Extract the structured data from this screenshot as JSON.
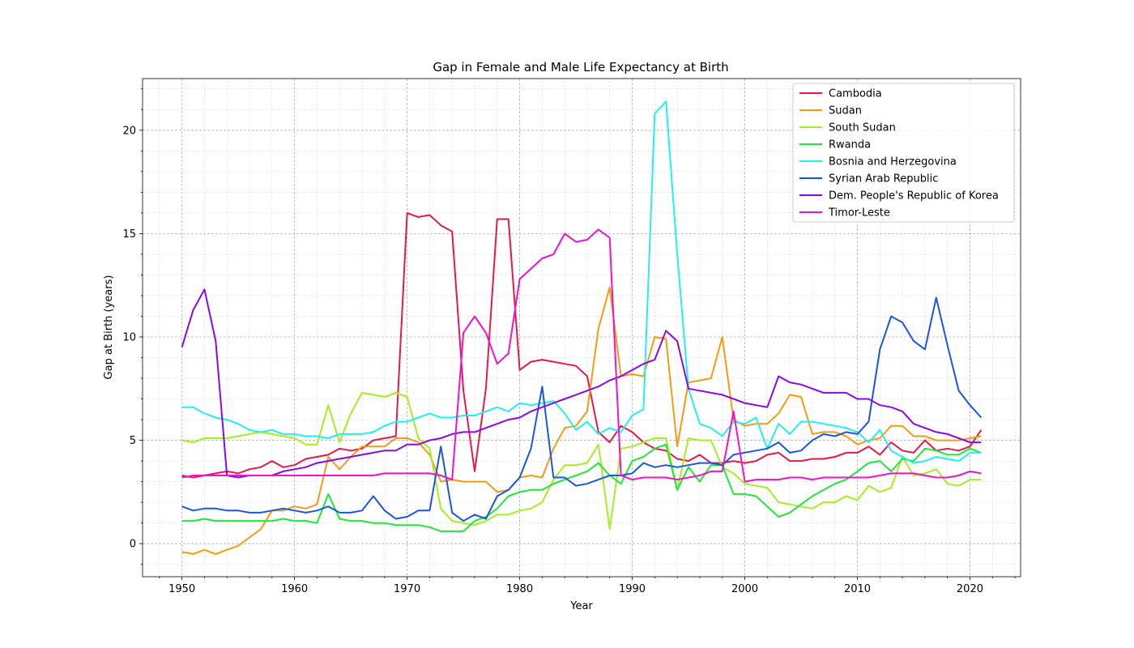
{
  "chart_data": {
    "type": "line",
    "title": "Gap in Female and Male Life Expectancy at Birth",
    "xlabel": "Year",
    "ylabel": "Gap at Birth (years)",
    "xlim": [
      1946.5,
      2024.5
    ],
    "ylim": [
      -1.6,
      22.5
    ],
    "xticks": [
      1950,
      1960,
      1970,
      1980,
      1990,
      2000,
      2010,
      2020
    ],
    "yticks": [
      0,
      5,
      10,
      15,
      20
    ],
    "grid": true,
    "legend_position": "top-right",
    "x": [
      1950,
      1951,
      1952,
      1953,
      1954,
      1955,
      1956,
      1957,
      1958,
      1959,
      1960,
      1961,
      1962,
      1963,
      1964,
      1965,
      1966,
      1967,
      1968,
      1969,
      1970,
      1971,
      1972,
      1973,
      1974,
      1975,
      1976,
      1977,
      1978,
      1979,
      1980,
      1981,
      1982,
      1983,
      1984,
      1985,
      1986,
      1987,
      1988,
      1989,
      1990,
      1991,
      1992,
      1993,
      1994,
      1995,
      1996,
      1997,
      1998,
      1999,
      2000,
      2001,
      2002,
      2003,
      2004,
      2005,
      2006,
      2007,
      2008,
      2009,
      2010,
      2011,
      2012,
      2013,
      2014,
      2015,
      2016,
      2017,
      2018,
      2019,
      2020,
      2021
    ],
    "series": [
      {
        "name": "Cambodia",
        "color": "#e6194b",
        "values": [
          3.3,
          3.2,
          3.3,
          3.4,
          3.5,
          3.4,
          3.6,
          3.7,
          4.0,
          3.7,
          3.8,
          4.1,
          4.2,
          4.3,
          4.6,
          4.5,
          4.6,
          5.0,
          5.1,
          5.2,
          16.0,
          15.8,
          15.9,
          15.4,
          15.1,
          7.4,
          3.5,
          7.5,
          15.7,
          15.7,
          8.4,
          8.8,
          8.9,
          8.8,
          8.7,
          8.6,
          8.1,
          5.4,
          4.9,
          5.7,
          5.4,
          4.9,
          4.6,
          4.5,
          4.1,
          4.0,
          4.3,
          3.9,
          3.9,
          4.0,
          3.9,
          4.0,
          4.3,
          4.4,
          4.0,
          4.0,
          4.1,
          4.1,
          4.2,
          4.4,
          4.4,
          4.7,
          4.3,
          4.9,
          4.5,
          4.4,
          5.0,
          4.5,
          4.6,
          4.5,
          4.7,
          5.5
        ]
      },
      {
        "name": "Sudan",
        "color": "#f39c12",
        "values": [
          -0.4,
          -0.5,
          -0.3,
          -0.5,
          -0.3,
          -0.1,
          0.3,
          0.7,
          1.6,
          1.6,
          1.8,
          1.7,
          1.9,
          4.2,
          3.6,
          4.2,
          4.7,
          4.7,
          4.7,
          5.1,
          5.1,
          4.9,
          4.3,
          3.0,
          3.1,
          3.0,
          3.0,
          3.0,
          2.5,
          2.6,
          3.2,
          3.3,
          3.2,
          4.6,
          5.6,
          5.7,
          6.4,
          10.4,
          12.4,
          8.1,
          8.2,
          8.1,
          10.0,
          9.9,
          4.7,
          7.8,
          7.9,
          8.0,
          10.0,
          6.0,
          5.7,
          5.8,
          5.8,
          6.3,
          7.2,
          7.1,
          5.3,
          5.4,
          5.4,
          5.2,
          4.8,
          5.0,
          5.1,
          5.7,
          5.7,
          5.2,
          5.2,
          5.0,
          5.0,
          5.0,
          5.1,
          5.2
        ]
      },
      {
        "name": "South Sudan",
        "color": "#a6ed22",
        "values": [
          5.0,
          4.9,
          5.1,
          5.1,
          5.1,
          5.2,
          5.3,
          5.4,
          5.3,
          5.2,
          5.1,
          4.8,
          4.8,
          6.7,
          4.9,
          6.3,
          7.3,
          7.2,
          7.1,
          7.3,
          7.1,
          5.1,
          4.6,
          1.7,
          1.1,
          1.0,
          0.9,
          1.1,
          1.4,
          1.4,
          1.6,
          1.7,
          2.0,
          3.1,
          3.8,
          3.8,
          3.9,
          4.8,
          0.7,
          4.6,
          4.7,
          4.9,
          5.1,
          5.1,
          2.6,
          5.1,
          5.0,
          5.0,
          3.7,
          3.4,
          2.9,
          2.8,
          2.7,
          2.0,
          1.9,
          1.8,
          1.7,
          2.0,
          2.0,
          2.3,
          2.1,
          2.8,
          2.5,
          2.7,
          4.2,
          3.3,
          3.4,
          3.6,
          2.9,
          2.8,
          3.1,
          3.1
        ]
      },
      {
        "name": "Rwanda",
        "color": "#22e639",
        "values": [
          1.1,
          1.1,
          1.2,
          1.1,
          1.1,
          1.1,
          1.1,
          1.1,
          1.1,
          1.2,
          1.1,
          1.1,
          1.0,
          2.4,
          1.2,
          1.1,
          1.1,
          1.0,
          1.0,
          0.9,
          0.9,
          0.9,
          0.8,
          0.6,
          0.6,
          0.6,
          1.1,
          1.3,
          1.7,
          2.3,
          2.5,
          2.6,
          2.6,
          2.9,
          3.1,
          3.3,
          3.5,
          3.9,
          3.3,
          2.9,
          4.0,
          4.2,
          4.6,
          4.8,
          2.6,
          3.7,
          3.0,
          3.8,
          3.8,
          2.4,
          2.4,
          2.3,
          1.8,
          1.3,
          1.5,
          1.9,
          2.3,
          2.6,
          2.9,
          3.1,
          3.5,
          3.9,
          4.0,
          3.5,
          4.1,
          4.0,
          4.6,
          4.5,
          4.3,
          4.3,
          4.6,
          4.4
        ]
      },
      {
        "name": "Bosnia and Herzegovina",
        "color": "#22f0ec",
        "values": [
          6.6,
          6.6,
          6.3,
          6.1,
          6.0,
          5.8,
          5.5,
          5.4,
          5.5,
          5.3,
          5.3,
          5.2,
          5.2,
          5.1,
          5.3,
          5.3,
          5.3,
          5.4,
          5.7,
          5.9,
          5.9,
          6.1,
          6.3,
          6.1,
          6.1,
          6.2,
          6.2,
          6.4,
          6.6,
          6.4,
          6.8,
          6.7,
          6.8,
          6.9,
          6.3,
          5.5,
          5.9,
          5.3,
          5.6,
          5.4,
          6.2,
          6.5,
          20.8,
          21.4,
          14.0,
          7.5,
          5.8,
          5.6,
          5.2,
          5.9,
          5.8,
          6.1,
          4.6,
          5.8,
          5.3,
          5.9,
          5.9,
          5.8,
          5.7,
          5.6,
          5.4,
          4.9,
          5.5,
          4.5,
          4.2,
          3.9,
          4.0,
          4.2,
          4.1,
          4.0,
          4.4,
          4.4
        ]
      },
      {
        "name": "Syrian Arab Republic",
        "color": "#1a56e0",
        "values": [
          1.8,
          1.6,
          1.7,
          1.7,
          1.6,
          1.6,
          1.5,
          1.5,
          1.6,
          1.7,
          1.6,
          1.5,
          1.6,
          1.8,
          1.5,
          1.5,
          1.6,
          2.3,
          1.6,
          1.2,
          1.3,
          1.6,
          1.6,
          4.7,
          1.5,
          1.1,
          1.4,
          1.2,
          2.3,
          2.6,
          3.2,
          4.6,
          7.6,
          3.2,
          3.2,
          2.8,
          2.9,
          3.1,
          3.3,
          3.3,
          3.4,
          3.9,
          3.7,
          3.8,
          3.7,
          3.8,
          3.9,
          3.9,
          3.8,
          4.3,
          4.4,
          4.5,
          4.6,
          4.9,
          4.4,
          4.5,
          5.0,
          5.3,
          5.2,
          5.4,
          5.3,
          5.9,
          9.4,
          11.0,
          10.7,
          9.8,
          9.4,
          11.9,
          9.6,
          7.4,
          6.7,
          6.1
        ]
      },
      {
        "name": "Dem. People's Republic of Korea",
        "color": "#8a0ae6",
        "values": [
          9.5,
          11.3,
          12.3,
          9.8,
          3.3,
          3.2,
          3.3,
          3.3,
          3.3,
          3.5,
          3.6,
          3.7,
          3.9,
          4.0,
          4.1,
          4.2,
          4.3,
          4.4,
          4.5,
          4.5,
          4.8,
          4.8,
          5.0,
          5.1,
          5.3,
          5.4,
          5.4,
          5.6,
          5.8,
          6.0,
          6.1,
          6.4,
          6.6,
          6.8,
          7.0,
          7.2,
          7.4,
          7.6,
          7.9,
          8.1,
          8.4,
          8.7,
          8.9,
          10.3,
          9.8,
          7.5,
          7.4,
          7.3,
          7.2,
          7.0,
          6.8,
          6.7,
          6.6,
          8.1,
          7.8,
          7.7,
          7.5,
          7.3,
          7.3,
          7.3,
          7.0,
          7.0,
          6.7,
          6.6,
          6.4,
          5.8,
          5.6,
          5.4,
          5.3,
          5.1,
          4.9,
          4.9
        ]
      },
      {
        "name": "Timor-Leste",
        "color": "#f013c9",
        "values": [
          3.2,
          3.3,
          3.3,
          3.3,
          3.3,
          3.3,
          3.3,
          3.3,
          3.3,
          3.3,
          3.3,
          3.3,
          3.3,
          3.3,
          3.3,
          3.3,
          3.3,
          3.3,
          3.4,
          3.4,
          3.4,
          3.4,
          3.4,
          3.3,
          3.1,
          10.2,
          11.0,
          10.2,
          8.7,
          9.2,
          12.8,
          13.3,
          13.8,
          14.0,
          15.0,
          14.6,
          14.7,
          15.2,
          14.8,
          3.3,
          3.1,
          3.2,
          3.2,
          3.2,
          3.1,
          3.2,
          3.3,
          3.5,
          3.5,
          6.4,
          3.0,
          3.1,
          3.1,
          3.1,
          3.2,
          3.2,
          3.1,
          3.2,
          3.2,
          3.2,
          3.2,
          3.2,
          3.3,
          3.4,
          3.4,
          3.4,
          3.3,
          3.2,
          3.2,
          3.3,
          3.5,
          3.4
        ]
      }
    ]
  }
}
